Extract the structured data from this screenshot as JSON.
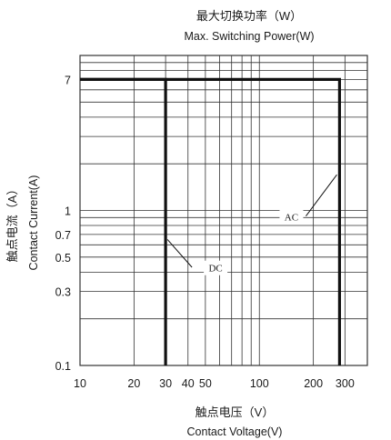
{
  "chart_data": {
    "type": "line",
    "title": "最大切换功率（W）",
    "subtitle": "Max. Switching Power(W)",
    "xlabel": "触点电压（V）",
    "xlabel_en": "Contact Voltage(V)",
    "ylabel": "触点电流（A）",
    "ylabel_en": "Contact Current(A)",
    "x_scale": "log",
    "y_scale": "log",
    "xlim": [
      10,
      400
    ],
    "ylim": [
      0.1,
      10
    ],
    "x_ticks": [
      {
        "value": 10,
        "label": "10"
      },
      {
        "value": 20,
        "label": "20"
      },
      {
        "value": 30,
        "label": "30"
      },
      {
        "value": 40,
        "label": "40"
      },
      {
        "value": 50,
        "label": "50"
      },
      {
        "value": 100,
        "label": "100"
      },
      {
        "value": 200,
        "label": "200"
      },
      {
        "value": 300,
        "label": "300"
      }
    ],
    "y_ticks": [
      {
        "value": 0.1,
        "label": "0.1"
      },
      {
        "value": 0.3,
        "label": "0.3"
      },
      {
        "value": 0.5,
        "label": "0.5"
      },
      {
        "value": 0.7,
        "label": "0.7"
      },
      {
        "value": 1,
        "label": "1"
      },
      {
        "value": 7,
        "label": "7"
      }
    ],
    "series": [
      {
        "name": "DC",
        "x": [
          30,
          30,
          10
        ],
        "y": [
          0.1,
          7,
          7
        ]
      },
      {
        "name": "AC",
        "x": [
          10,
          280,
          280
        ],
        "y": [
          7,
          7,
          0.1
        ]
      }
    ],
    "annotations": [
      {
        "text": "AC",
        "series": "AC"
      },
      {
        "text": "DC",
        "series": "DC"
      }
    ],
    "grid": true,
    "colors": {
      "line": "#111111",
      "grid": "#333333",
      "text": "#1a1a1a"
    }
  }
}
